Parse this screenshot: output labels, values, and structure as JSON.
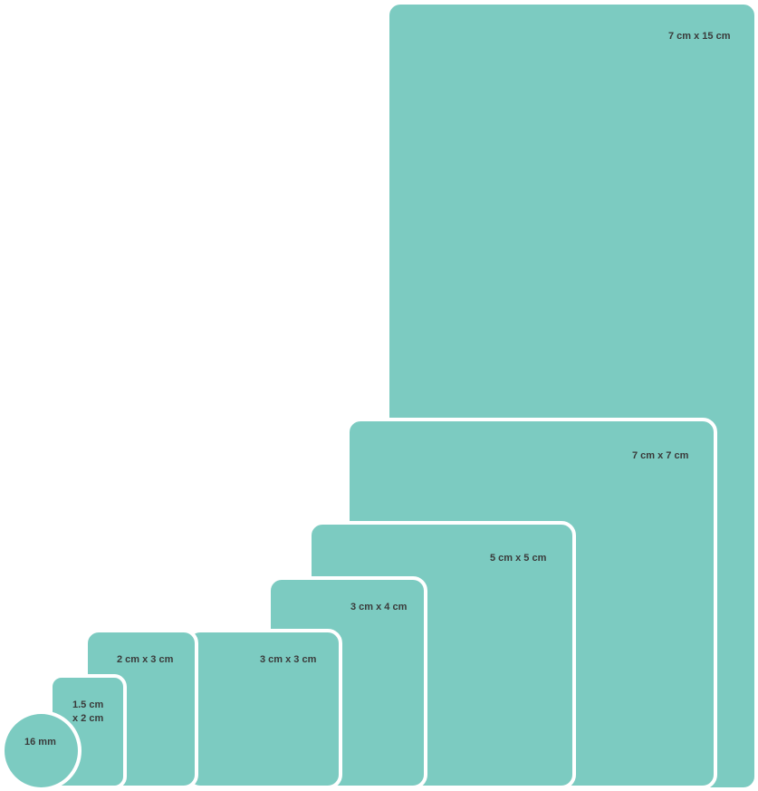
{
  "colors": {
    "fill": "#7ccbc1",
    "outline": "#ffffff",
    "label": "#3a3a3a"
  },
  "sizes": [
    {
      "id": "7x15",
      "label": "7 cm x 15 cm"
    },
    {
      "id": "7x7",
      "label": "7 cm x 7 cm"
    },
    {
      "id": "5x5",
      "label": "5 cm x 5 cm"
    },
    {
      "id": "3x4",
      "label": "3 cm x 4 cm"
    },
    {
      "id": "3x3",
      "label": "3 cm x 3 cm"
    },
    {
      "id": "2x3",
      "label": "2 cm x 3 cm"
    },
    {
      "id": "15x2",
      "label_line1": "1.5 cm",
      "label_line2": "x 2 cm"
    },
    {
      "id": "16mm",
      "label": "16 mm"
    }
  ]
}
